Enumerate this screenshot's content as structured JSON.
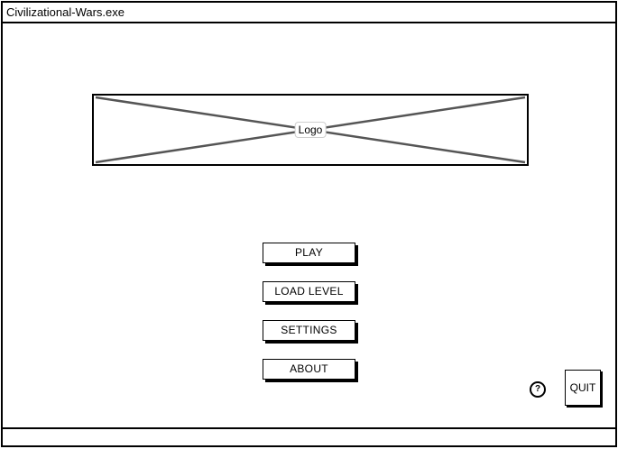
{
  "window": {
    "title": "Civilizational-Wars.exe"
  },
  "logo": {
    "label": "Logo"
  },
  "menu": {
    "play_label": "PLAY",
    "load_level_label": "LOAD LEVEL",
    "settings_label": "SETTINGS",
    "about_label": "ABOUT"
  },
  "footer": {
    "help_icon": "question-mark-circle",
    "help_glyph": "?",
    "quit_label": "QUIT"
  }
}
